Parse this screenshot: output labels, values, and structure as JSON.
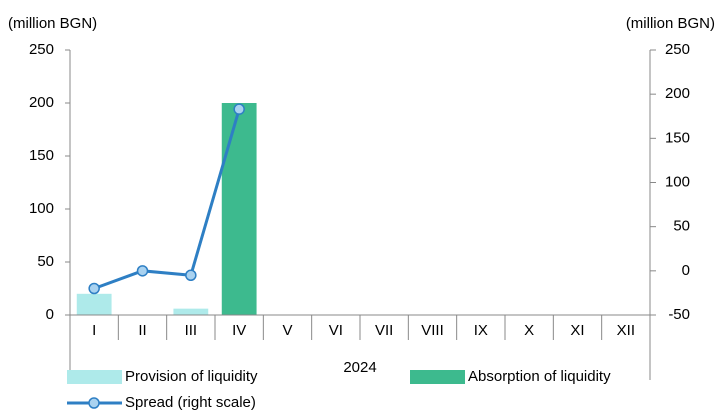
{
  "chart_data": {
    "type": "bar",
    "ylabel": "(million BGN)",
    "y2label": "(million BGN)",
    "xlabel": "2024",
    "categories": [
      "I",
      "II",
      "III",
      "IV",
      "V",
      "VI",
      "VII",
      "VIII",
      "IX",
      "X",
      "XI",
      "XII"
    ],
    "series": [
      {
        "name": "Provision of liquidity",
        "type": "bar",
        "color": "#aeeaea",
        "values": [
          20,
          0,
          6,
          0,
          null,
          null,
          null,
          null,
          null,
          null,
          null,
          null
        ]
      },
      {
        "name": "Absorption of liquidity",
        "type": "bar",
        "color": "#3dba8e",
        "values": [
          0,
          0,
          0,
          200,
          null,
          null,
          null,
          null,
          null,
          null,
          null,
          null
        ]
      },
      {
        "name": "Spread (right scale)",
        "type": "line",
        "axis": "y2",
        "color": "#2e7fc4",
        "values": [
          -20,
          0,
          -5,
          183,
          null,
          null,
          null,
          null,
          null,
          null,
          null,
          null
        ]
      }
    ],
    "ylim": [
      0,
      250
    ],
    "yticks": [
      0,
      50,
      100,
      150,
      200,
      250
    ],
    "y2lim": [
      -50,
      250
    ],
    "y2ticks": [
      -50,
      0,
      50,
      100,
      150,
      200,
      250
    ]
  }
}
